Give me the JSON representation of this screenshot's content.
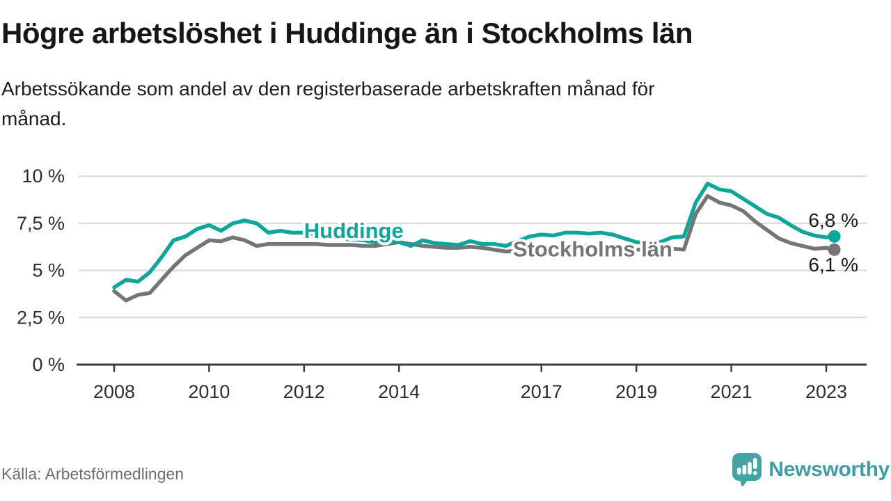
{
  "header": {
    "title": "Högre arbetslöshet i Huddinge än i Stockholms län",
    "subtitle_line1": "Arbetssökande som andel av den registerbaserade arbetskraften månad för",
    "subtitle_line2": "månad."
  },
  "footer": {
    "source": "Källa: Arbetsförmedlingen",
    "logo_text": "Newsworthy",
    "logo_icon": "newsworthy-speech-bubble-bar-chart-icon",
    "logo_color": "#45a3a2"
  },
  "chart_data": {
    "type": "line",
    "title": "Högre arbetslöshet i Huddinge än i Stockholms län",
    "xlabel": "",
    "ylabel": "Arbetssökande som andel av den registerbaserade arbetskraften",
    "x_unit": "year (monthly series shown, sampled quarterly)",
    "xlim": [
      2007.2,
      2023.9
    ],
    "ylim": [
      0,
      10
    ],
    "grid": "horizontal",
    "legend_position": "inline-labels-on-lines",
    "xticks": [
      2008,
      2010,
      2012,
      2014,
      2017,
      2019,
      2021,
      2023
    ],
    "yticks": [
      {
        "label": "0 %",
        "value": 0
      },
      {
        "label": "2,5 %",
        "value": 2.5
      },
      {
        "label": "5 %",
        "value": 5
      },
      {
        "label": "7,5 %",
        "value": 7.5
      },
      {
        "label": "10 %",
        "value": 10
      }
    ],
    "x": [
      2008,
      2008.25,
      2008.5,
      2008.75,
      2009,
      2009.25,
      2009.5,
      2009.75,
      2010,
      2010.25,
      2010.5,
      2010.75,
      2011,
      2011.25,
      2011.5,
      2011.75,
      2012,
      2012.25,
      2012.5,
      2012.75,
      2013,
      2013.25,
      2013.5,
      2013.75,
      2014,
      2014.25,
      2014.5,
      2014.75,
      2015,
      2015.25,
      2015.5,
      2015.75,
      2016,
      2016.25,
      2016.5,
      2016.75,
      2017,
      2017.25,
      2017.5,
      2017.75,
      2018,
      2018.25,
      2018.5,
      2018.75,
      2019,
      2019.25,
      2019.5,
      2019.75,
      2020,
      2020.25,
      2020.5,
      2020.75,
      2021,
      2021.25,
      2021.5,
      2021.75,
      2022,
      2022.25,
      2022.5,
      2022.75,
      2023,
      2023.17
    ],
    "series": [
      {
        "name": "Huddinge",
        "color": "#0fa69a",
        "end_label": "6,8 %",
        "end_value": 6.8,
        "label_anchor": {
          "x": 2012.0,
          "y": 7.1
        },
        "values": [
          4.1,
          4.5,
          4.4,
          4.9,
          5.7,
          6.6,
          6.8,
          7.2,
          7.4,
          7.1,
          7.5,
          7.65,
          7.5,
          7.0,
          7.1,
          7.0,
          7.0,
          6.9,
          6.8,
          6.7,
          6.65,
          6.6,
          6.5,
          6.6,
          6.5,
          6.3,
          6.6,
          6.45,
          6.4,
          6.35,
          6.55,
          6.4,
          6.4,
          6.3,
          6.55,
          6.8,
          6.9,
          6.85,
          7.0,
          7.0,
          6.95,
          7.0,
          6.9,
          6.7,
          6.5,
          6.45,
          6.5,
          6.75,
          6.8,
          8.6,
          9.6,
          9.3,
          9.2,
          8.8,
          8.4,
          8.0,
          7.8,
          7.4,
          7.05,
          6.85,
          6.75,
          6.8
        ]
      },
      {
        "name": "Stockholms län",
        "color": "#757575",
        "end_label": "6,1 %",
        "end_value": 6.1,
        "label_anchor": {
          "x": 2016.4,
          "y": 6.13
        },
        "values": [
          3.9,
          3.4,
          3.7,
          3.8,
          4.5,
          5.2,
          5.8,
          6.2,
          6.6,
          6.55,
          6.75,
          6.6,
          6.3,
          6.4,
          6.4,
          6.4,
          6.4,
          6.4,
          6.35,
          6.35,
          6.35,
          6.3,
          6.3,
          6.4,
          6.5,
          6.4,
          6.3,
          6.25,
          6.2,
          6.2,
          6.25,
          6.2,
          6.1,
          6.0,
          6.05,
          6.15,
          6.2,
          6.25,
          6.3,
          6.3,
          6.3,
          6.3,
          6.25,
          6.2,
          6.1,
          6.1,
          6.1,
          6.15,
          6.1,
          8.0,
          8.95,
          8.6,
          8.45,
          8.15,
          7.6,
          7.15,
          6.7,
          6.45,
          6.3,
          6.15,
          6.2,
          6.1
        ]
      }
    ]
  }
}
